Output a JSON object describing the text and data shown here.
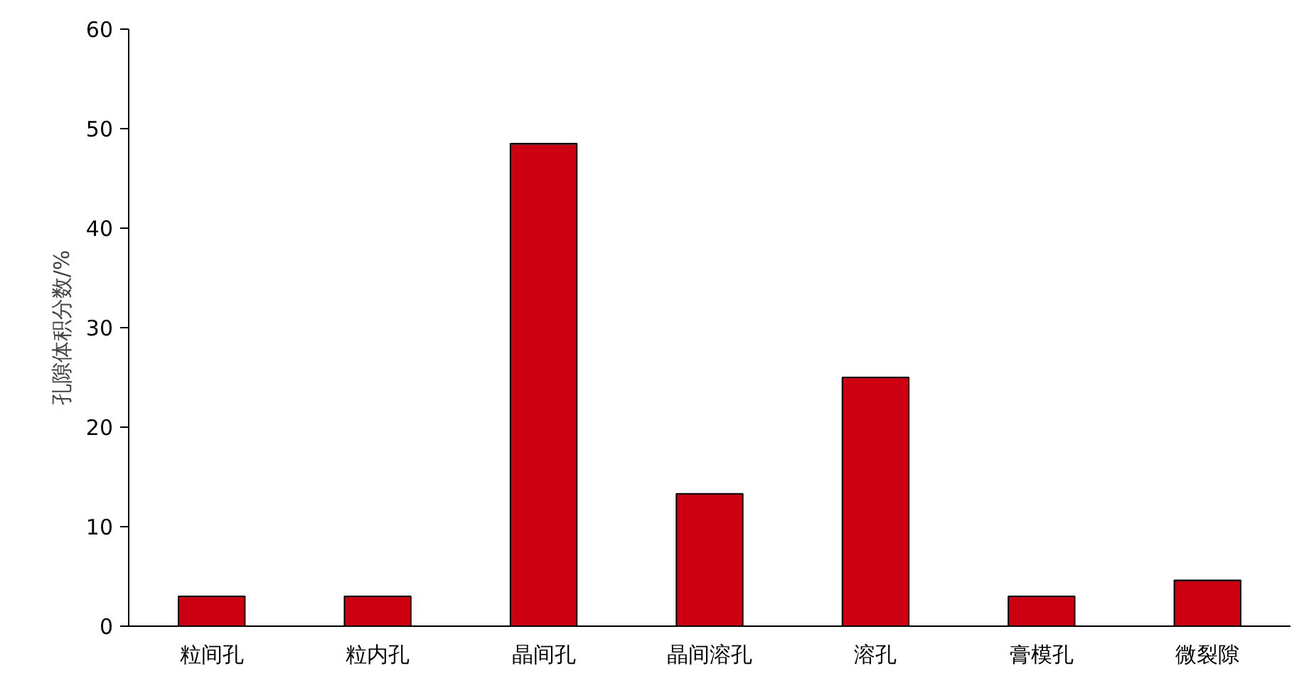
{
  "chart_data": {
    "type": "bar",
    "ylabel": "孔隙体积分数/%",
    "categories": [
      "粒间孔",
      "粒内孔",
      "晶间孔",
      "晶间溶孔",
      "溶孔",
      "膏模孔",
      "微裂隙"
    ],
    "values": [
      3,
      3,
      48.5,
      13.3,
      25,
      3,
      4.6
    ],
    "color": "#cc0010",
    "ylim": [
      0,
      60
    ],
    "yticks": [
      0,
      10,
      20,
      30,
      40,
      50,
      60
    ],
    "grid": false
  }
}
